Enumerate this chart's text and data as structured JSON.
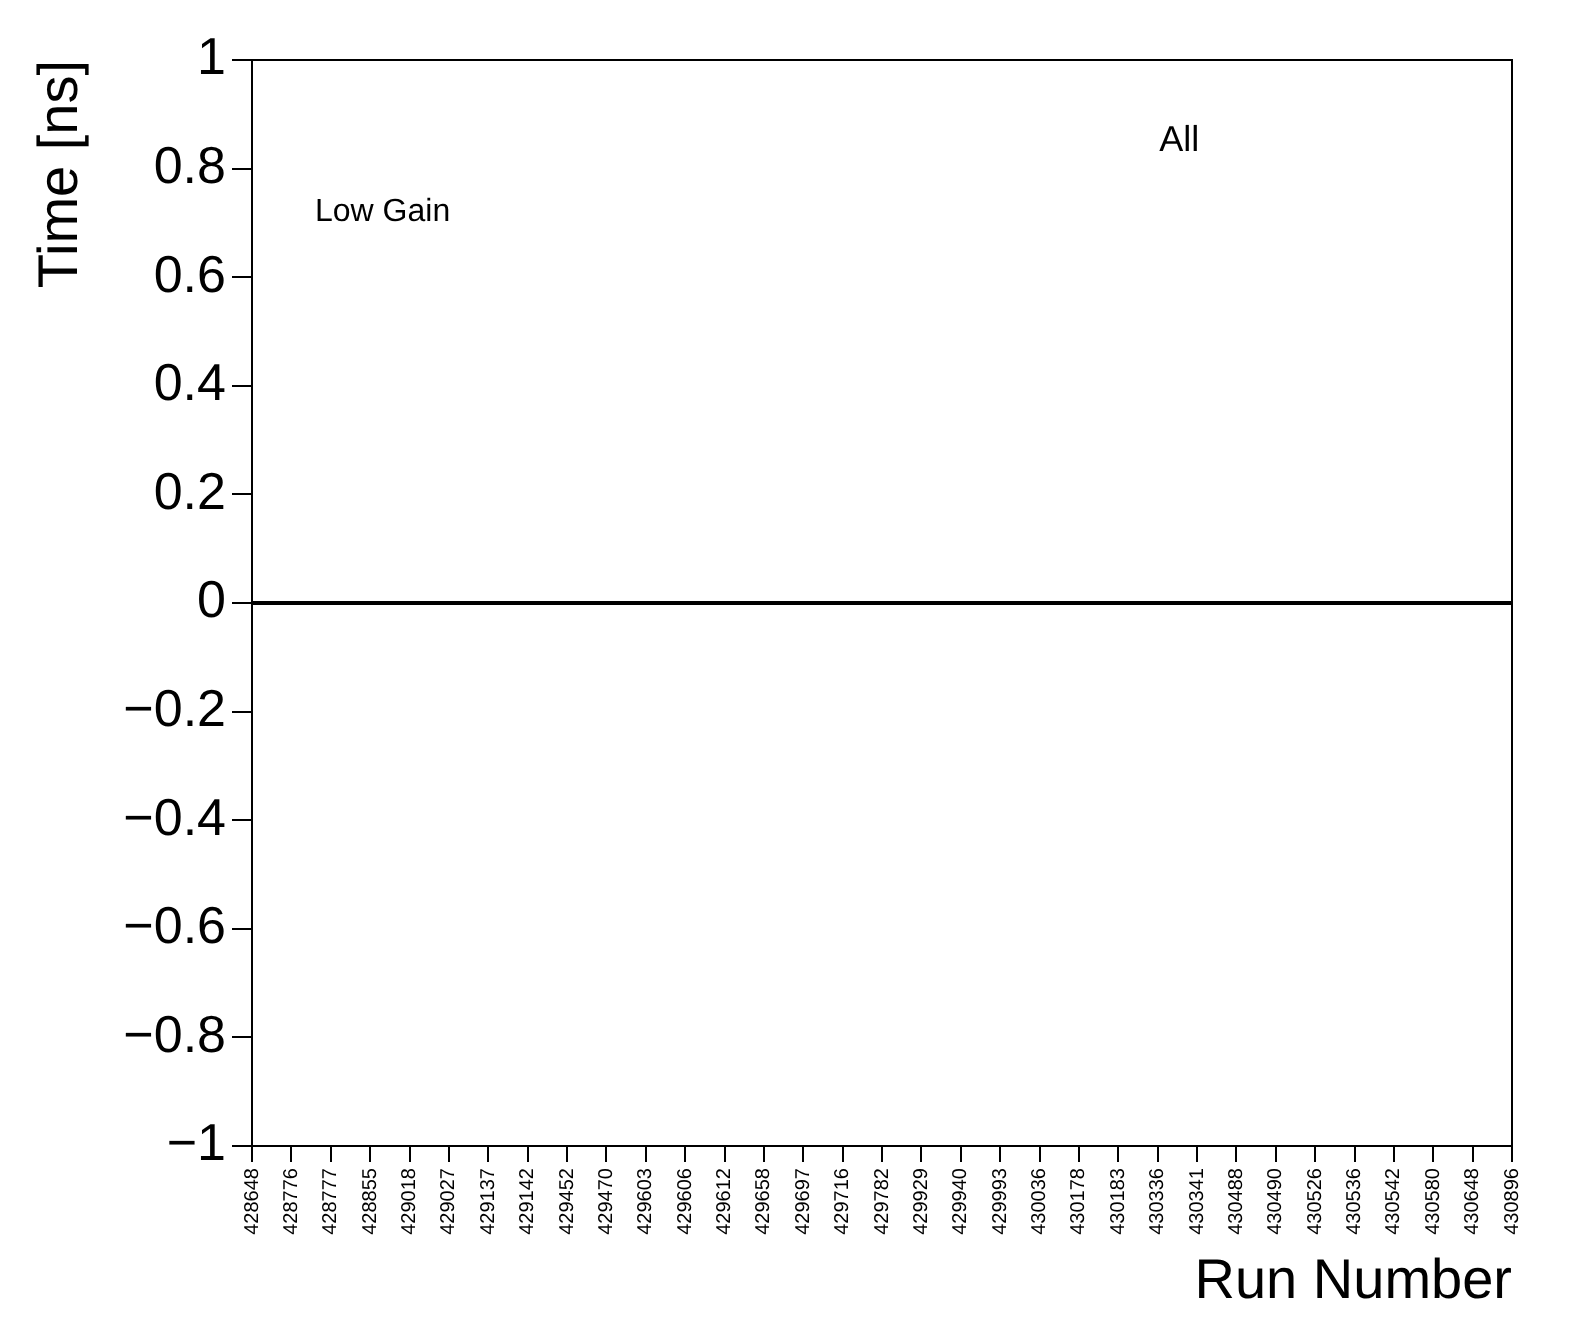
{
  "chart_data": {
    "type": "line",
    "xlabel": "Run Number",
    "ylabel": "Time [ns]",
    "categories": [
      "428648",
      "428776",
      "428777",
      "428855",
      "429018",
      "429027",
      "429137",
      "429142",
      "429452",
      "429470",
      "429603",
      "429606",
      "429612",
      "429658",
      "429697",
      "429716",
      "429782",
      "429929",
      "429940",
      "429993",
      "430036",
      "430178",
      "430183",
      "430336",
      "430341",
      "430488",
      "430490",
      "430526",
      "430536",
      "430542",
      "430580",
      "430648",
      "430896"
    ],
    "values": [
      null,
      null,
      null,
      null,
      null,
      null,
      null,
      null,
      null,
      null,
      null,
      null,
      null,
      null,
      null,
      null,
      null,
      null,
      null,
      null,
      null,
      null,
      null,
      null,
      null,
      null,
      null,
      null,
      null,
      null,
      null,
      null,
      null
    ],
    "ylim": [
      -1,
      1
    ],
    "yticks": [
      {
        "value": -1,
        "label": "−1"
      },
      {
        "value": -0.8,
        "label": "−0.8"
      },
      {
        "value": -0.6,
        "label": "−0.6"
      },
      {
        "value": -0.4,
        "label": "−0.4"
      },
      {
        "value": -0.2,
        "label": "−0.2"
      },
      0,
      0.2,
      0.4,
      0.6,
      0.8,
      1
    ],
    "ref_lines": [
      {
        "axis": "y",
        "value": 0,
        "color": "#000000"
      }
    ],
    "annotations": [
      "Low Gain",
      "All"
    ],
    "grid": false,
    "legend": false
  }
}
